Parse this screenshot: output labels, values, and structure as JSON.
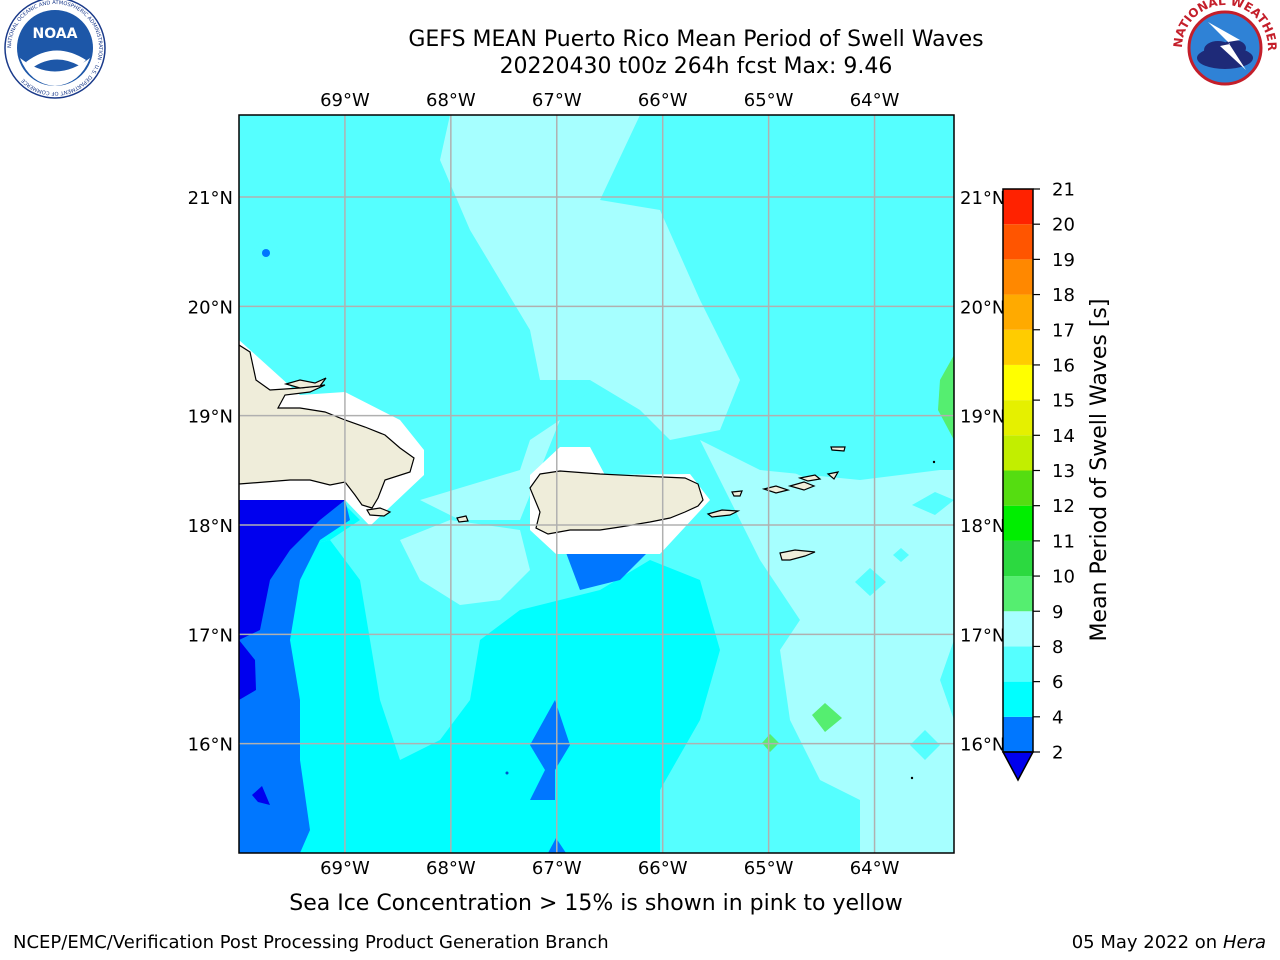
{
  "title": {
    "line1": "GEFS MEAN Puerto Rico Mean Period of Swell Waves",
    "line2": "20220430 t00z 264h fcst   Max: 9.46"
  },
  "caption": "Sea Ice Concentration > 15% is shown in pink to yellow",
  "footer": {
    "left": "NCEP/EMC/Verification Post Processing Product Generation Branch",
    "date": "05 May 2022 on",
    "system": "Hera"
  },
  "logos": {
    "noaa": {
      "label": "NOAA",
      "ring_text": "NATIONAL OCEANIC AND ATMOSPHERIC ADMINISTRATION · U.S. DEPARTMENT OF COMMERCE"
    },
    "nws": {
      "ring_text": "NATIONAL WEATHER SERVICE"
    }
  },
  "map": {
    "lon_range": [
      -70.0,
      -63.25
    ],
    "lat_range": [
      15.0,
      21.75
    ],
    "lon_ticks": [
      {
        "value": -69,
        "label": "69°W"
      },
      {
        "value": -68,
        "label": "68°W"
      },
      {
        "value": -67,
        "label": "67°W"
      },
      {
        "value": -66,
        "label": "66°W"
      },
      {
        "value": -65,
        "label": "65°W"
      },
      {
        "value": -64,
        "label": "64°W"
      }
    ],
    "lat_ticks": [
      {
        "value": 21,
        "label": "21°N"
      },
      {
        "value": 20,
        "label": "20°N"
      },
      {
        "value": 19,
        "label": "19°N"
      },
      {
        "value": 18,
        "label": "18°N"
      },
      {
        "value": 17,
        "label": "17°N"
      },
      {
        "value": 16,
        "label": "16°N"
      }
    ],
    "gridlines": true,
    "field_name": "mean swell period",
    "colors": {
      "land": "#efedda",
      "grid": "#b0b0b0",
      "mask": "#ffffff"
    }
  },
  "colorbar": {
    "label": "Mean Period of Swell Waves [s]",
    "extend": "min",
    "under_color": "#0000ee",
    "bins": [
      {
        "lo": 2,
        "hi": 4,
        "color": "#0077ff"
      },
      {
        "lo": 4,
        "hi": 6,
        "color": "#00ffff"
      },
      {
        "lo": 6,
        "hi": 8,
        "color": "#55ffff"
      },
      {
        "lo": 8,
        "hi": 9,
        "color": "#a6ffff"
      },
      {
        "lo": 9,
        "hi": 10,
        "color": "#55ee70"
      },
      {
        "lo": 10,
        "hi": 11,
        "color": "#2cd940"
      },
      {
        "lo": 11,
        "hi": 12,
        "color": "#00ee00"
      },
      {
        "lo": 12,
        "hi": 13,
        "color": "#55dd11"
      },
      {
        "lo": 13,
        "hi": 14,
        "color": "#c2ee00"
      },
      {
        "lo": 14,
        "hi": 15,
        "color": "#e5f000"
      },
      {
        "lo": 15,
        "hi": 16,
        "color": "#ffff00"
      },
      {
        "lo": 16,
        "hi": 17,
        "color": "#ffcc00"
      },
      {
        "lo": 17,
        "hi": 18,
        "color": "#ffaa00"
      },
      {
        "lo": 18,
        "hi": 19,
        "color": "#ff8800"
      },
      {
        "lo": 19,
        "hi": 20,
        "color": "#ff5500"
      },
      {
        "lo": 20,
        "hi": 21,
        "color": "#ff2200"
      }
    ],
    "tick_labels": [
      "2",
      "4",
      "6",
      "8",
      "9",
      "10",
      "11",
      "12",
      "13",
      "14",
      "15",
      "16",
      "17",
      "18",
      "19",
      "20",
      "21"
    ]
  }
}
